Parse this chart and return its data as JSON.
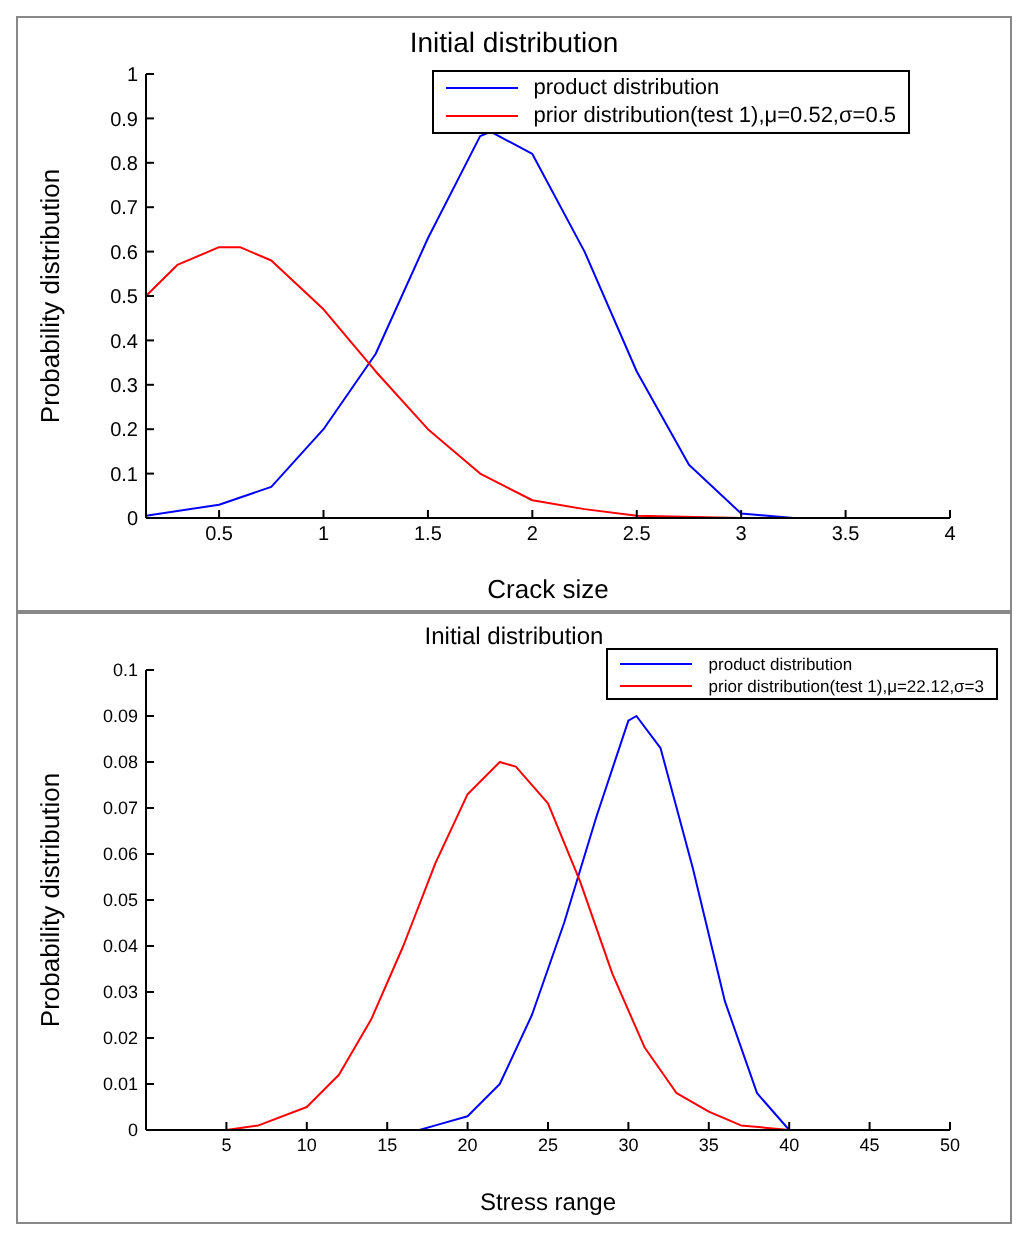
{
  "chart_data": [
    {
      "type": "line",
      "title": "Initial distribution",
      "xlabel": "Crack size",
      "ylabel": "Probability distribution",
      "xlim": [
        0.15,
        4
      ],
      "xticks": [
        0.5,
        1,
        1.5,
        2,
        2.5,
        3,
        3.5,
        4
      ],
      "ylim": [
        0,
        1
      ],
      "yticks": [
        0,
        0.1,
        0.2,
        0.3,
        0.4,
        0.5,
        0.6,
        0.7,
        0.8,
        0.9,
        1
      ],
      "grid": false,
      "legend": "top right",
      "marker": "none",
      "line_style": "solid",
      "series": [
        {
          "name": "product distribution",
          "color": "#0000ff",
          "x": [
            0.15,
            0.5,
            0.75,
            1,
            1.25,
            1.5,
            1.75,
            1.8,
            2,
            2.25,
            2.5,
            2.75,
            3,
            3.25,
            4
          ],
          "values": [
            0.005,
            0.03,
            0.07,
            0.2,
            0.37,
            0.63,
            0.86,
            0.87,
            0.82,
            0.6,
            0.33,
            0.12,
            0.01,
            0,
            0
          ]
        },
        {
          "name": "prior distribution(test 1),μ=0.52,σ=0.5",
          "color": "#ff0000",
          "x": [
            0.15,
            0.3,
            0.5,
            0.6,
            0.75,
            1,
            1.25,
            1.5,
            1.75,
            2,
            2.25,
            2.5,
            3,
            4
          ],
          "values": [
            0.5,
            0.57,
            0.61,
            0.61,
            0.58,
            0.47,
            0.33,
            0.2,
            0.1,
            0.04,
            0.02,
            0.005,
            0,
            0
          ]
        }
      ]
    },
    {
      "type": "line",
      "title": "Initial distribution",
      "xlabel": "Stress range",
      "ylabel": "Probability distribution",
      "xlim": [
        0,
        50
      ],
      "xticks": [
        5,
        10,
        15,
        20,
        25,
        30,
        35,
        40,
        45,
        50
      ],
      "ylim": [
        0,
        0.1
      ],
      "yticks": [
        0,
        0.01,
        0.02,
        0.03,
        0.04,
        0.05,
        0.06,
        0.07,
        0.08,
        0.09,
        0.1
      ],
      "grid": false,
      "legend": "top right",
      "marker": "none",
      "line_style": "solid",
      "series": [
        {
          "name": "product distribution",
          "color": "#0000ff",
          "x": [
            1,
            17,
            18,
            20,
            22,
            24,
            26,
            28,
            30,
            30.5,
            32,
            34,
            36,
            38,
            40,
            50
          ],
          "values": [
            0,
            0,
            0.001,
            0.003,
            0.01,
            0.025,
            0.045,
            0.068,
            0.089,
            0.09,
            0.083,
            0.057,
            0.028,
            0.008,
            0,
            0
          ]
        },
        {
          "name": "prior distribution(test 1),μ=22.12,σ=3",
          "color": "#ff0000",
          "x": [
            1,
            5,
            7,
            10,
            12,
            14,
            16,
            18,
            20,
            22,
            23,
            25,
            27,
            29,
            31,
            33,
            35,
            37,
            40,
            50
          ],
          "values": [
            0,
            0,
            0.001,
            0.005,
            0.012,
            0.024,
            0.04,
            0.058,
            0.073,
            0.08,
            0.079,
            0.071,
            0.054,
            0.034,
            0.018,
            0.008,
            0.004,
            0.001,
            0,
            0
          ]
        }
      ]
    }
  ]
}
